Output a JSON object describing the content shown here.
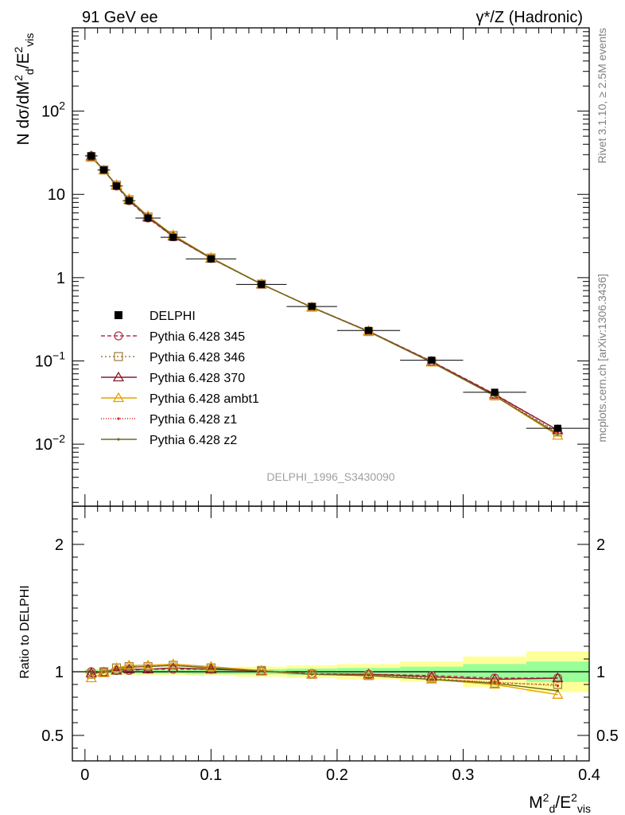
{
  "header": {
    "left": "91 GeV ee",
    "right": "γ*/Z (Hadronic)"
  },
  "side_text": {
    "rivet": "Rivet 3.1.10, ≥ 2.5M events",
    "mcplots": "mcplots.cern.ch [arXiv:1306.3436]"
  },
  "watermark": "DELPHI_1996_S3430090",
  "chart_data": [
    {
      "type": "line",
      "panel": "main",
      "yscale": "log",
      "ylabel": "N dσ/dM²d/E²vis",
      "xlim": [
        -0.01,
        0.4
      ],
      "ylim": [
        0.0018,
        1000
      ],
      "y_ticks": [
        {
          "v": 100,
          "base": "10",
          "exp": "2"
        },
        {
          "v": 10,
          "base": "10",
          "exp": ""
        },
        {
          "v": 1,
          "base": "1",
          "exp": ""
        },
        {
          "v": 0.1,
          "base": "10",
          "exp": "−1"
        },
        {
          "v": 0.01,
          "base": "10",
          "exp": "−2"
        }
      ],
      "legend_position": "left-middle",
      "x": [
        0.005,
        0.015,
        0.025,
        0.035,
        0.05,
        0.07,
        0.1,
        0.14,
        0.18,
        0.225,
        0.275,
        0.325,
        0.375
      ],
      "data": {
        "name": "DELPHI",
        "values": [
          29.0,
          19.6,
          12.6,
          8.4,
          5.2,
          3.05,
          1.68,
          0.83,
          0.45,
          0.232,
          0.102,
          0.042,
          0.0155
        ],
        "x_err": [
          0.005,
          0.005,
          0.005,
          0.005,
          0.01,
          0.01,
          0.02,
          0.02,
          0.02,
          0.025,
          0.025,
          0.025,
          0.025
        ]
      },
      "series": [
        {
          "name": "Pythia 6.428 345",
          "color": "#b5314a",
          "dash": "5,3",
          "marker": "circle-open",
          "values": [
            29.0,
            19.6,
            12.6,
            8.4,
            5.2,
            3.1,
            1.7,
            0.835,
            0.443,
            0.227,
            0.099,
            0.04,
            0.0147
          ]
        },
        {
          "name": "Pythia 6.428 346",
          "color": "#a07a3a",
          "dash": "2,3",
          "marker": "square-open",
          "values": [
            28.4,
            19.6,
            12.9,
            8.6,
            5.35,
            3.2,
            1.72,
            0.835,
            0.442,
            0.225,
            0.097,
            0.038,
            0.014
          ]
        },
        {
          "name": "Pythia 6.428 370",
          "color": "#8b1a2a",
          "dash": "",
          "marker": "triangle-open",
          "values": [
            28.7,
            19.5,
            12.8,
            8.6,
            5.3,
            3.13,
            1.71,
            0.835,
            0.44,
            0.227,
            0.098,
            0.0395,
            0.0148
          ]
        },
        {
          "name": "Pythia 6.428 ambt1",
          "color": "#e5a000",
          "dash": "",
          "marker": "triangle-open",
          "values": [
            27.6,
            19.5,
            13.0,
            8.8,
            5.5,
            3.25,
            1.74,
            0.84,
            0.44,
            0.225,
            0.096,
            0.038,
            0.0127
          ]
        },
        {
          "name": "Pythia 6.428 z1",
          "color": "#d92020",
          "dash": "1,2",
          "marker": "dot",
          "values": [
            28.6,
            19.6,
            12.9,
            8.7,
            5.4,
            3.2,
            1.72,
            0.835,
            0.44,
            0.225,
            0.096,
            0.0385,
            0.0138
          ]
        },
        {
          "name": "Pythia 6.428 z2",
          "color": "#6b6b20",
          "dash": "",
          "marker": "dot",
          "values": [
            28.6,
            19.6,
            12.8,
            8.7,
            5.4,
            3.2,
            1.72,
            0.835,
            0.44,
            0.225,
            0.096,
            0.038,
            0.0132
          ]
        }
      ]
    },
    {
      "type": "line",
      "panel": "ratio",
      "ylabel": "Ratio to DELPHI",
      "xlabel": "M²d/E²vis",
      "xlim": [
        -0.01,
        0.4
      ],
      "ylim": [
        0.3,
        2.3
      ],
      "y_ticks": [
        0.5,
        1,
        2
      ],
      "x_ticks": [
        0,
        0.1,
        0.2,
        0.3,
        0.4
      ],
      "x_tick_labels": [
        "0",
        "0.1",
        "0.2",
        "0.3",
        "0.4"
      ],
      "band_edges": [
        0.0,
        0.01,
        0.02,
        0.03,
        0.04,
        0.06,
        0.08,
        0.12,
        0.16,
        0.2,
        0.25,
        0.3,
        0.35,
        0.4
      ],
      "band_inner": [
        0.015,
        0.015,
        0.015,
        0.015,
        0.015,
        0.015,
        0.02,
        0.02,
        0.025,
        0.03,
        0.04,
        0.06,
        0.08
      ],
      "band_outer": [
        0.025,
        0.025,
        0.025,
        0.025,
        0.025,
        0.025,
        0.03,
        0.04,
        0.05,
        0.06,
        0.08,
        0.12,
        0.16
      ],
      "series": [
        {
          "name": "Pythia 6.428 345",
          "values": [
            1.0,
            1.0,
            1.01,
            1.01,
            1.02,
            1.02,
            1.02,
            1.01,
            0.985,
            0.98,
            0.97,
            0.95,
            0.95
          ]
        },
        {
          "name": "Pythia 6.428 346",
          "values": [
            0.98,
            1.0,
            1.03,
            1.04,
            1.04,
            1.05,
            1.03,
            1.01,
            0.98,
            0.97,
            0.95,
            0.91,
            0.9
          ]
        },
        {
          "name": "Pythia 6.428 370",
          "values": [
            0.99,
            0.995,
            1.01,
            1.02,
            1.02,
            1.03,
            1.02,
            1.005,
            0.98,
            0.98,
            0.96,
            0.94,
            0.95
          ]
        },
        {
          "name": "Pythia 6.428 ambt1",
          "values": [
            0.95,
            0.99,
            1.03,
            1.05,
            1.05,
            1.06,
            1.04,
            1.01,
            0.98,
            0.97,
            0.94,
            0.9,
            0.82
          ]
        },
        {
          "name": "Pythia 6.428 z1",
          "values": [
            0.985,
            1.0,
            1.02,
            1.04,
            1.04,
            1.05,
            1.03,
            1.005,
            0.98,
            0.97,
            0.94,
            0.92,
            0.89
          ]
        },
        {
          "name": "Pythia 6.428 z2",
          "values": [
            0.985,
            1.0,
            1.02,
            1.035,
            1.04,
            1.05,
            1.03,
            1.005,
            0.98,
            0.97,
            0.94,
            0.91,
            0.85
          ]
        }
      ]
    }
  ]
}
